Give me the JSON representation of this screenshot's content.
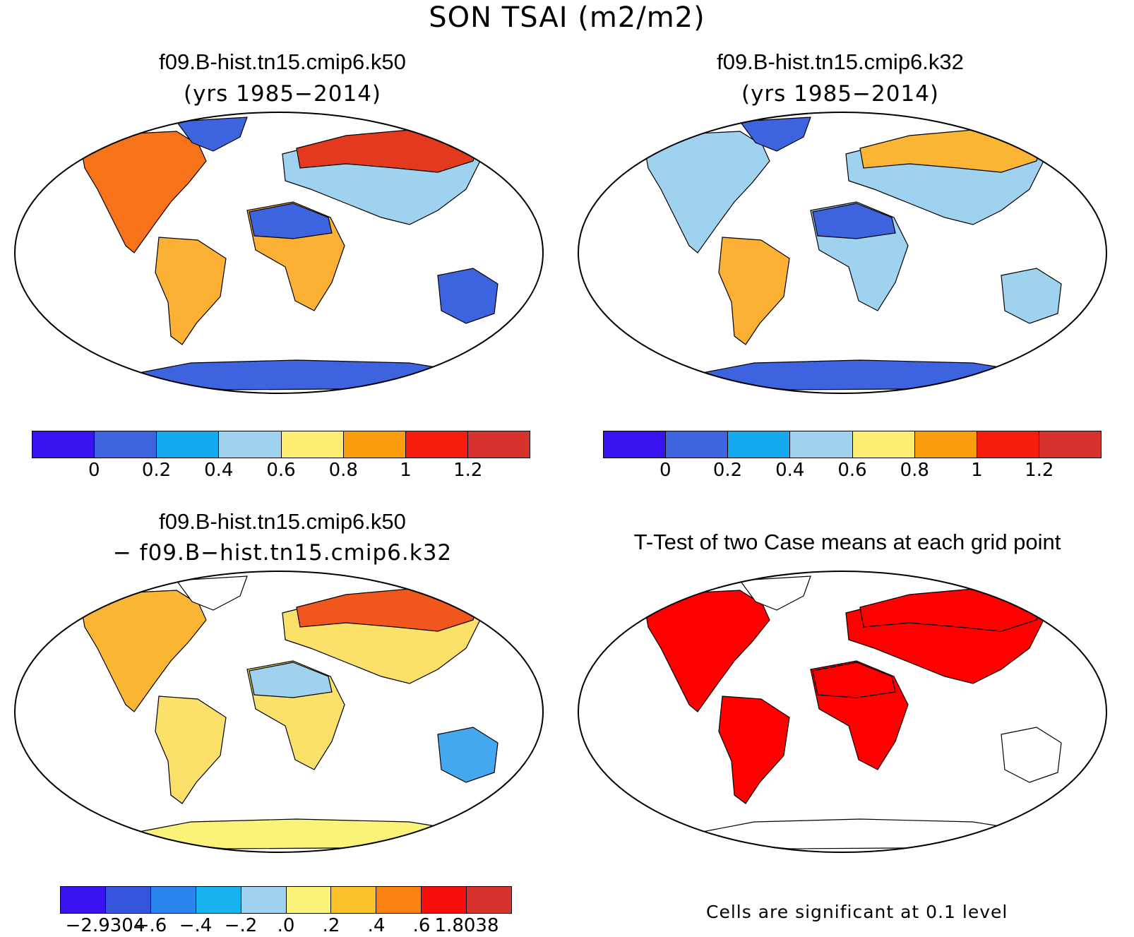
{
  "title": "SON TSAI (m2/m2)",
  "panels": [
    {
      "id": "a",
      "title": "f09.B-hist.tn15.cmip6.k50",
      "subtitle": "(yrs 1985−2014)"
    },
    {
      "id": "b",
      "title": "f09.B-hist.tn15.cmip6.k32",
      "subtitle": "(yrs 1985−2014)"
    },
    {
      "id": "c",
      "title": "f09.B-hist.tn15.cmip6.k50",
      "subtitle": "− f09.B−hist.tn15.cmip6.k32"
    },
    {
      "id": "d",
      "title": "T-Test of two Case means at each grid point",
      "subtitle": ""
    }
  ],
  "colorbar_abs": {
    "colors": [
      "#3a12f0",
      "#3d64de",
      "#14a9ef",
      "#9fd2ef",
      "#fbee73",
      "#fb9e0d",
      "#f61d0e",
      "#d8322f"
    ],
    "labels": [
      "0",
      "0.2",
      "0.4",
      "0.6",
      "0.8",
      "1",
      "1.2"
    ]
  },
  "colorbar_diff": {
    "colors": [
      "#3a12f0",
      "#3556dc",
      "#2a86ee",
      "#16b3f0",
      "#9fd2ef",
      "#fbf27a",
      "#fbc22a",
      "#fb8210",
      "#f60f0b",
      "#d8322f"
    ],
    "labels": [
      "−2.9304",
      "−.6",
      "−.4",
      "−.2",
      ".0",
      ".2",
      ".4",
      ".6",
      "1.8038"
    ]
  },
  "significance_note": "Cells are significant at 0.1 level",
  "significance_color": "#ff0000",
  "fields": {
    "a": {
      "north_america": "#f6731a",
      "south_america": "#fcb034",
      "africa": "#fcb034",
      "sahara": "#3d64de",
      "eurasia": "#9fd2ef",
      "siberia": "#e2391f",
      "australia": "#3d64de",
      "antarctica": "#3d64de",
      "greenland": "#3d64de"
    },
    "b": {
      "north_america": "#9fd2ef",
      "south_america": "#fcb034",
      "africa": "#9fd2ef",
      "sahara": "#3d64de",
      "eurasia": "#9fd2ef",
      "siberia": "#fbb534",
      "australia": "#9fd2ef",
      "antarctica": "#3d64de",
      "greenland": "#3d64de"
    },
    "c": {
      "north_america": "#fbb534",
      "south_america": "#fbe16a",
      "africa": "#fbe16a",
      "sahara": "#9fd2ef",
      "eurasia": "#fbe16a",
      "siberia": "#f1561d",
      "australia": "#43a8ee",
      "antarctica": "#fbf27a",
      "greenland": "#ffffff"
    },
    "d": {
      "north_america": "#ff0000",
      "south_america": "#ff0000",
      "africa": "#ff0000",
      "sahara": "#ff0000",
      "eurasia": "#ff0000",
      "siberia": "#ff0000",
      "australia": "#ffffff",
      "antarctica": "#ffffff",
      "greenland": "#ffffff"
    }
  }
}
